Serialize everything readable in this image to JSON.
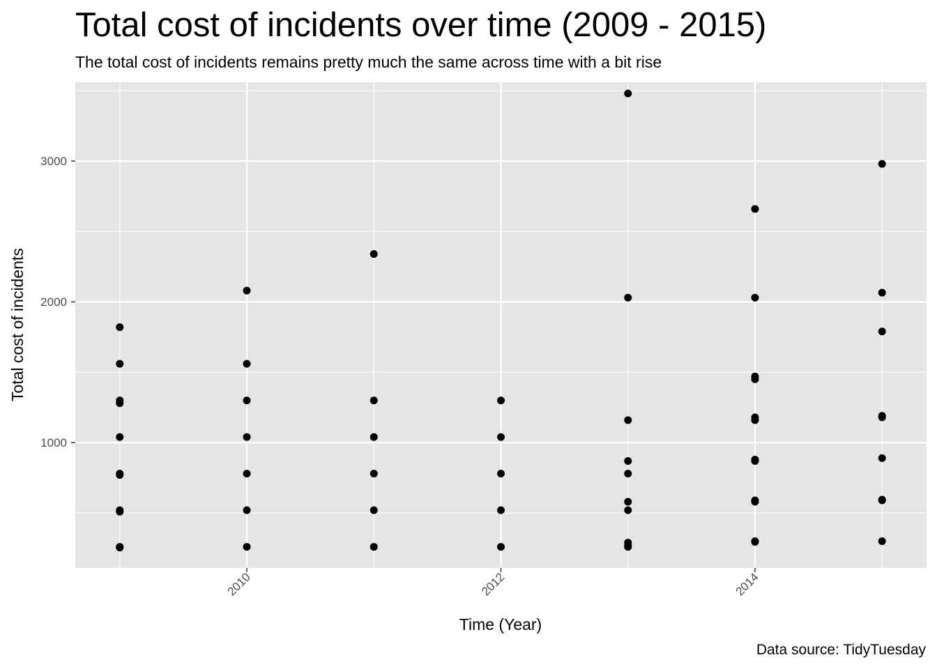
{
  "chart_data": {
    "type": "scatter",
    "title": "Total cost of incidents over time (2009 - 2015)",
    "subtitle": "The total cost of incidents remains pretty much the same across time with a bit rise",
    "caption": "Data source: TidyTuesday",
    "xlabel": "Time (Year)",
    "ylabel": "Total cost of incidents",
    "xlim": [
      2008.65,
      2015.35
    ],
    "ylim": [
      110,
      3560
    ],
    "x_ticks": [
      2010,
      2012,
      2014
    ],
    "x_tick_labels": [
      "2010",
      "2012",
      "2014"
    ],
    "y_ticks": [
      1000,
      2000,
      3000
    ],
    "y_tick_labels": [
      "1000",
      "2000",
      "3000"
    ],
    "grid": true,
    "legend": "none",
    "colors": {
      "panel_background": "#e5e5e5",
      "grid_line": "#ffffff",
      "point": "#000000",
      "tick_label": "#4d4d4d"
    },
    "series": [
      {
        "x": [
          2009,
          2009,
          2009,
          2009,
          2009,
          2009,
          2009,
          2009,
          2009,
          2009,
          2009
        ],
        "y": [
          1820,
          1560,
          1300,
          1280,
          1040,
          780,
          770,
          520,
          510,
          260,
          255
        ]
      },
      {
        "x": [
          2010,
          2010,
          2010,
          2010,
          2010,
          2010,
          2010
        ],
        "y": [
          2080,
          1560,
          1300,
          1040,
          780,
          520,
          260
        ]
      },
      {
        "x": [
          2011,
          2011,
          2011,
          2011,
          2011,
          2011
        ],
        "y": [
          2340,
          1300,
          1040,
          780,
          520,
          260
        ]
      },
      {
        "x": [
          2012,
          2012,
          2012,
          2012,
          2012
        ],
        "y": [
          1300,
          1040,
          780,
          520,
          260
        ]
      },
      {
        "x": [
          2013,
          2013,
          2013,
          2013,
          2013,
          2013,
          2013,
          2013,
          2013,
          2013
        ],
        "y": [
          3480,
          2030,
          1160,
          870,
          780,
          580,
          520,
          290,
          270,
          260
        ]
      },
      {
        "x": [
          2014,
          2014,
          2014,
          2014,
          2014,
          2014,
          2014,
          2014,
          2014,
          2014,
          2014,
          2014
        ],
        "y": [
          2660,
          2030,
          1470,
          1450,
          1180,
          1160,
          880,
          870,
          590,
          580,
          300,
          295
        ]
      },
      {
        "x": [
          2015,
          2015,
          2015,
          2015,
          2015,
          2015,
          2015,
          2015,
          2015
        ],
        "y": [
          2980,
          2065,
          1790,
          1190,
          1180,
          890,
          595,
          590,
          300
        ]
      }
    ]
  }
}
